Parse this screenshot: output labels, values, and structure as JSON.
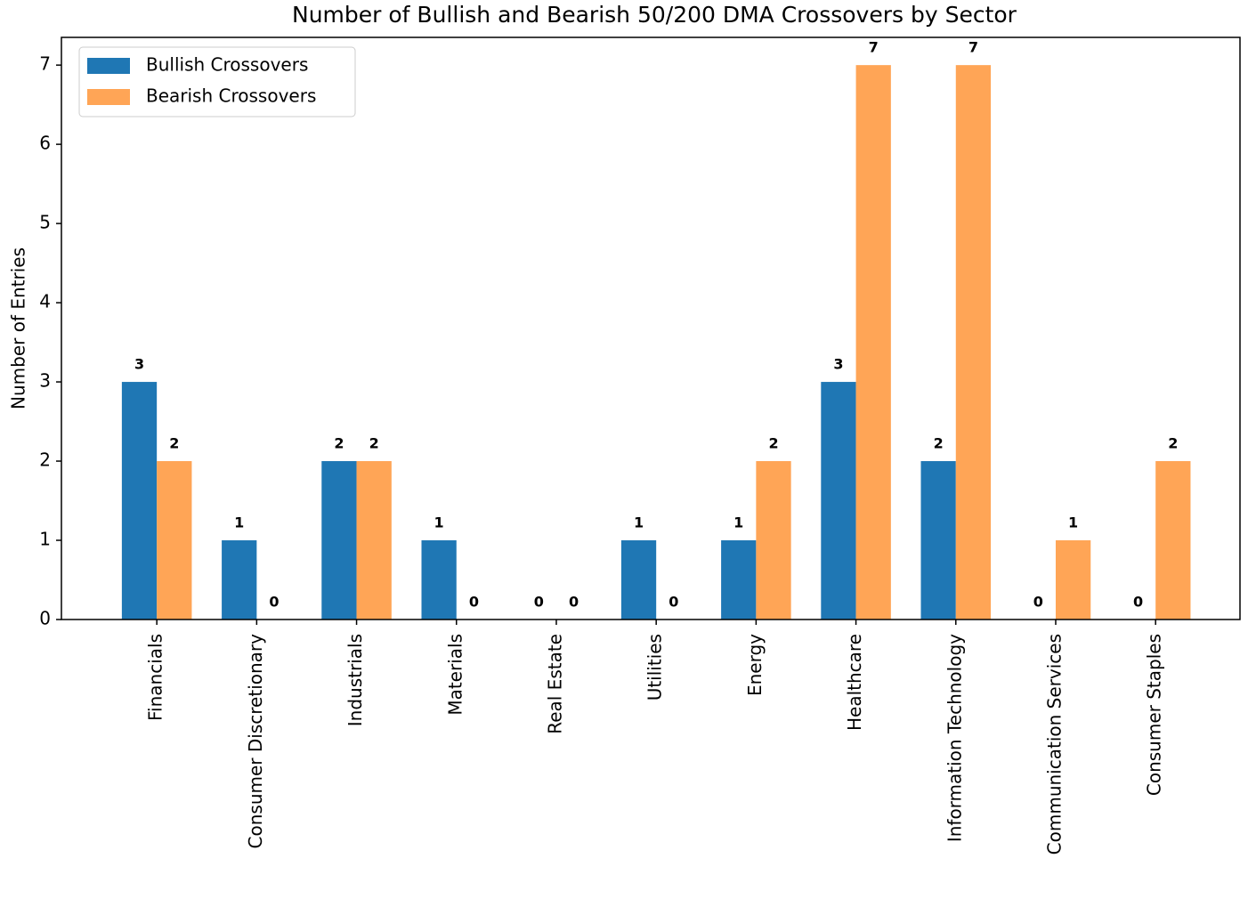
{
  "chart_data": {
    "type": "bar",
    "title": "Number of Bullish and Bearish 50/200 DMA Crossovers by Sector",
    "y_label": "Number of Entries",
    "categories": [
      "Financials",
      "Consumer Discretionary",
      "Industrials",
      "Materials",
      "Real Estate",
      "Utilities",
      "Energy",
      "Healthcare",
      "Information Technology",
      "Communication Services",
      "Consumer Staples"
    ],
    "series": [
      {
        "name": "Bullish Crossovers",
        "color": "#1f77b4",
        "values": [
          3,
          1,
          2,
          1,
          0,
          1,
          1,
          3,
          2,
          0,
          0
        ]
      },
      {
        "name": "Bearish Crossovers",
        "color": "#ffa556",
        "values": [
          2,
          0,
          2,
          0,
          0,
          0,
          2,
          7,
          7,
          1,
          2
        ]
      }
    ],
    "ylim": [
      0,
      7.35
    ],
    "yticks": [
      0,
      1,
      2,
      3,
      4,
      5,
      6,
      7
    ],
    "legend": "upper left",
    "grid": false
  }
}
